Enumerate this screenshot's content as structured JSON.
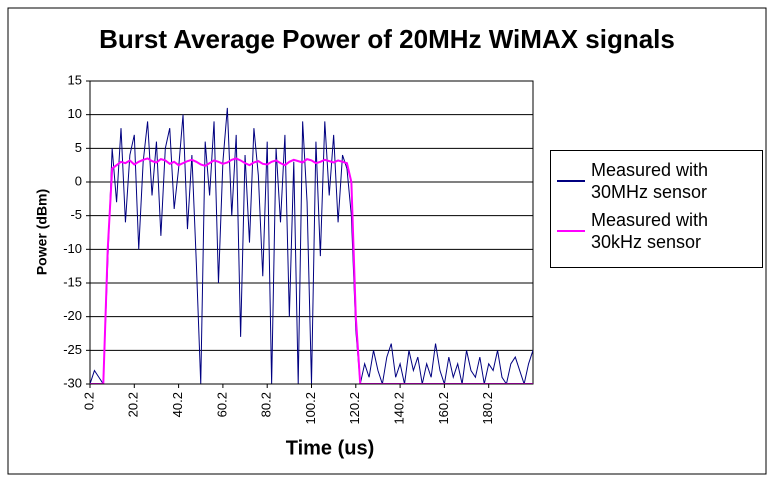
{
  "chart_data": {
    "type": "line",
    "title": "Burst Average Power of 20MHz WiMAX signals",
    "x_label": "Time (us)",
    "y_label": "Power (dBm)",
    "xlim": [
      0.2,
      200.2
    ],
    "xticks": [
      0.2,
      20.2,
      40.2,
      60.2,
      80.2,
      100.2,
      120.2,
      140.2,
      160.2,
      180.2
    ],
    "ylim": [
      -30,
      15
    ],
    "yticks": [
      -30,
      -25,
      -20,
      -15,
      -10,
      -5,
      0,
      5,
      10,
      15
    ],
    "grid": true,
    "legend": "right",
    "x": [
      0.2,
      2.2,
      4.2,
      6.2,
      8.2,
      10.2,
      12.2,
      14.2,
      16.2,
      18.2,
      20.2,
      22.2,
      24.2,
      26.2,
      28.2,
      30.2,
      32.2,
      34.2,
      36.2,
      38.2,
      40.2,
      42.2,
      44.2,
      46.2,
      48.2,
      50.2,
      52.2,
      54.2,
      56.2,
      58.2,
      60.2,
      62.2,
      64.2,
      66.2,
      68.2,
      70.2,
      72.2,
      74.2,
      76.2,
      78.2,
      80.2,
      82.2,
      84.2,
      86.2,
      88.2,
      90.2,
      92.2,
      94.2,
      96.2,
      98.2,
      100.2,
      102.2,
      104.2,
      106.2,
      108.2,
      110.2,
      112.2,
      114.2,
      116.2,
      118.2,
      120.2,
      122.2,
      124.2,
      126.2,
      128.2,
      130.2,
      132.2,
      134.2,
      136.2,
      138.2,
      140.2,
      142.2,
      144.2,
      146.2,
      148.2,
      150.2,
      152.2,
      154.2,
      156.2,
      158.2,
      160.2,
      162.2,
      164.2,
      166.2,
      168.2,
      170.2,
      172.2,
      174.2,
      176.2,
      178.2,
      180.2,
      182.2,
      184.2,
      186.2,
      188.2,
      190.2,
      192.2,
      194.2,
      196.2,
      198.2,
      200.2
    ],
    "series": [
      {
        "name": "Measured with 30MHz sensor",
        "color": "#000080",
        "values": [
          -30,
          -28,
          -29,
          -30,
          -12,
          5,
          -3,
          8,
          -6,
          4,
          7,
          -10,
          3,
          9,
          -2,
          6,
          -8,
          5,
          8,
          -4,
          2,
          10,
          -7,
          4,
          -12,
          -30,
          6,
          -2,
          9,
          -15,
          3,
          11,
          -5,
          7,
          -23,
          4,
          -9,
          8,
          1,
          -14,
          6,
          -30,
          5,
          -6,
          7,
          -20,
          3,
          -30,
          9,
          -3,
          -30,
          6,
          -11,
          9,
          -2,
          7,
          -6,
          4,
          2,
          -5,
          -22,
          -30,
          -27,
          -29,
          -25,
          -28,
          -30,
          -26,
          -24,
          -29,
          -27,
          -30,
          -25,
          -28,
          -26,
          -30,
          -27,
          -29,
          -24,
          -28,
          -30,
          -26,
          -29,
          -27,
          -30,
          -25,
          -28,
          -29,
          -26,
          -30,
          -27,
          -28,
          -25,
          -29,
          -30,
          -27,
          -26,
          -28,
          -30,
          -27,
          -25
        ]
      },
      {
        "name": "Measured with 30kHz sensor",
        "color": "#ff00ff",
        "values": [
          -30,
          -30,
          -30,
          -30,
          -10,
          2,
          2.5,
          3,
          2.8,
          3.2,
          2.6,
          3,
          3.3,
          3.5,
          3.1,
          2.9,
          3.4,
          3.2,
          2.7,
          3,
          2.5,
          2.8,
          3.1,
          3.3,
          3,
          2.6,
          2.4,
          2.8,
          3.2,
          3,
          2.7,
          2.9,
          3.3,
          3.5,
          3.2,
          2.8,
          2.5,
          2.9,
          3.1,
          2.7,
          2.6,
          3,
          3.2,
          2.8,
          2.5,
          3,
          3.3,
          3.1,
          2.9,
          3.4,
          3.2,
          2.8,
          3,
          3.3,
          3.1,
          2.9,
          3.2,
          3,
          2.8,
          0,
          -20,
          -30,
          -30,
          -30,
          -30,
          -30,
          -30,
          -30,
          -30,
          -30,
          -30,
          -30,
          -30,
          -30,
          -30,
          -30,
          -30,
          -30,
          -30,
          -30,
          -30,
          -30,
          -30,
          -30,
          -30,
          -30,
          -30,
          -30,
          -30,
          -30,
          -30,
          -30,
          -30,
          -30,
          -30,
          -30,
          -30,
          -30,
          -30,
          -30,
          -30
        ]
      }
    ]
  }
}
